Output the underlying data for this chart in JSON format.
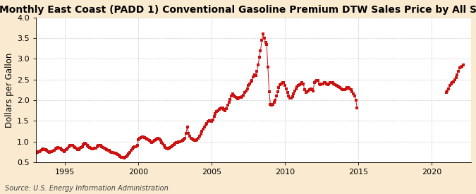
{
  "title": "Monthly East Coast (PADD 1) Conventional Gasoline Premium DTW Sales Price by All Sellers",
  "ylabel": "Dollars per Gallon",
  "source": "Source: U.S. Energy Information Administration",
  "xlim": [
    1993.0,
    2022.7
  ],
  "ylim": [
    0.5,
    4.0
  ],
  "xticks": [
    1995,
    2000,
    2005,
    2010,
    2015,
    2020
  ],
  "yticks": [
    0.5,
    1.0,
    1.5,
    2.0,
    2.5,
    3.0,
    3.5,
    4.0
  ],
  "outer_bg": "#faebd0",
  "plot_bg": "#ffffff",
  "marker_color": "#cc1111",
  "grid_color": "#aaaaaa",
  "title_fontsize": 10,
  "label_fontsize": 8.5,
  "tick_fontsize": 8,
  "segments": [
    {
      "x": [
        1993.0,
        1993.08,
        1993.17,
        1993.25,
        1993.33,
        1993.42,
        1993.5,
        1993.58,
        1993.67,
        1993.75,
        1993.83,
        1993.92,
        1994.0,
        1994.08,
        1994.17,
        1994.25,
        1994.33,
        1994.42,
        1994.5,
        1994.58,
        1994.67,
        1994.75,
        1994.83,
        1994.92,
        1995.0,
        1995.08,
        1995.17,
        1995.25,
        1995.33,
        1995.42,
        1995.5,
        1995.58,
        1995.67,
        1995.75,
        1995.83,
        1995.92,
        1996.0,
        1996.08,
        1996.17,
        1996.25,
        1996.33,
        1996.42,
        1996.5,
        1996.58,
        1996.67,
        1996.75,
        1996.83,
        1996.92,
        1997.0,
        1997.08,
        1997.17,
        1997.25,
        1997.33,
        1997.42,
        1997.5,
        1997.58,
        1997.67,
        1997.75,
        1997.83,
        1997.92,
        1998.0,
        1998.08,
        1998.17,
        1998.25,
        1998.33,
        1998.42,
        1998.5,
        1998.58,
        1998.67,
        1998.75,
        1998.83,
        1998.92,
        1999.0,
        1999.08,
        1999.17,
        1999.25,
        1999.33,
        1999.42,
        1999.5,
        1999.58,
        1999.67,
        1999.75,
        1999.83,
        1999.92,
        2000.0,
        2000.08,
        2000.17,
        2000.25,
        2000.33,
        2000.42,
        2000.5,
        2000.58,
        2000.67,
        2000.75,
        2000.83,
        2000.92,
        2001.0,
        2001.08,
        2001.17,
        2001.25,
        2001.33,
        2001.42,
        2001.5,
        2001.58,
        2001.67,
        2001.75,
        2001.83,
        2001.92,
        2002.0,
        2002.08,
        2002.17,
        2002.25,
        2002.33,
        2002.42,
        2002.5,
        2002.58,
        2002.67,
        2002.75,
        2002.83,
        2002.92,
        2003.0,
        2003.08,
        2003.17,
        2003.25,
        2003.33,
        2003.42,
        2003.5,
        2003.58,
        2003.67,
        2003.75,
        2003.83,
        2003.92,
        2004.0,
        2004.08,
        2004.17,
        2004.25,
        2004.33,
        2004.42,
        2004.5,
        2004.58,
        2004.67,
        2004.75,
        2004.83,
        2004.92,
        2005.0,
        2005.08,
        2005.17,
        2005.25,
        2005.33,
        2005.42,
        2005.5,
        2005.58,
        2005.67,
        2005.75,
        2005.83,
        2005.92,
        2006.0,
        2006.08,
        2006.17,
        2006.25,
        2006.33,
        2006.42,
        2006.5,
        2006.58,
        2006.67,
        2006.75,
        2006.83,
        2006.92,
        2007.0,
        2007.08,
        2007.17,
        2007.25,
        2007.33,
        2007.42,
        2007.5,
        2007.58,
        2007.67,
        2007.75,
        2007.83,
        2007.92,
        2008.0,
        2008.08,
        2008.17,
        2008.25,
        2008.33,
        2008.42,
        2008.5,
        2008.58,
        2008.67,
        2008.75,
        2008.83,
        2008.92,
        2009.0,
        2009.08,
        2009.17,
        2009.25,
        2009.33,
        2009.42,
        2009.5,
        2009.58,
        2009.67,
        2009.75,
        2009.83,
        2009.92,
        2010.0,
        2010.08,
        2010.17,
        2010.25,
        2010.33,
        2010.42,
        2010.5,
        2010.58,
        2010.67,
        2010.75,
        2010.83,
        2010.92,
        2011.0,
        2011.08,
        2011.17,
        2011.25,
        2011.33,
        2011.42,
        2011.5,
        2011.58,
        2011.67,
        2011.75,
        2011.83,
        2011.92,
        2012.0,
        2012.08,
        2012.17,
        2012.25,
        2012.33,
        2012.42,
        2012.5,
        2012.58,
        2012.67,
        2012.75,
        2012.83,
        2012.92,
        2013.0,
        2013.08,
        2013.17,
        2013.25,
        2013.33,
        2013.42,
        2013.5,
        2013.58,
        2013.67,
        2013.75,
        2013.83,
        2013.92,
        2014.0,
        2014.08,
        2014.17,
        2014.25,
        2014.33,
        2014.42,
        2014.5,
        2014.58,
        2014.67,
        2014.75,
        2014.83,
        2014.92
      ],
      "y": [
        0.72,
        0.73,
        0.75,
        0.76,
        0.78,
        0.8,
        0.82,
        0.81,
        0.8,
        0.78,
        0.76,
        0.74,
        0.75,
        0.76,
        0.77,
        0.79,
        0.82,
        0.84,
        0.85,
        0.84,
        0.83,
        0.81,
        0.78,
        0.76,
        0.78,
        0.8,
        0.83,
        0.87,
        0.9,
        0.91,
        0.9,
        0.88,
        0.85,
        0.83,
        0.81,
        0.8,
        0.83,
        0.85,
        0.88,
        0.92,
        0.95,
        0.94,
        0.91,
        0.88,
        0.85,
        0.84,
        0.82,
        0.82,
        0.83,
        0.84,
        0.87,
        0.9,
        0.91,
        0.9,
        0.88,
        0.86,
        0.84,
        0.82,
        0.8,
        0.79,
        0.78,
        0.76,
        0.74,
        0.73,
        0.72,
        0.71,
        0.7,
        0.68,
        0.66,
        0.64,
        0.62,
        0.61,
        0.6,
        0.61,
        0.63,
        0.66,
        0.7,
        0.74,
        0.78,
        0.82,
        0.85,
        0.87,
        0.88,
        0.9,
        1.05,
        1.08,
        1.1,
        1.11,
        1.11,
        1.1,
        1.08,
        1.06,
        1.04,
        1.02,
        1.0,
        0.98,
        1.0,
        1.02,
        1.04,
        1.06,
        1.08,
        1.06,
        1.02,
        0.98,
        0.94,
        0.9,
        0.86,
        0.84,
        0.82,
        0.83,
        0.85,
        0.87,
        0.9,
        0.92,
        0.95,
        0.97,
        0.98,
        0.99,
        1.0,
        1.01,
        1.03,
        1.05,
        1.08,
        1.2,
        1.35,
        1.2,
        1.12,
        1.08,
        1.06,
        1.04,
        1.02,
        1.02,
        1.04,
        1.08,
        1.12,
        1.18,
        1.25,
        1.3,
        1.35,
        1.4,
        1.44,
        1.48,
        1.5,
        1.5,
        1.48,
        1.52,
        1.6,
        1.68,
        1.72,
        1.75,
        1.78,
        1.8,
        1.82,
        1.82,
        1.78,
        1.75,
        1.8,
        1.88,
        1.95,
        2.02,
        2.1,
        2.15,
        2.12,
        2.08,
        2.06,
        2.04,
        2.05,
        2.07,
        2.06,
        2.08,
        2.12,
        2.18,
        2.22,
        2.28,
        2.35,
        2.4,
        2.44,
        2.48,
        2.56,
        2.62,
        2.6,
        2.7,
        2.85,
        3.05,
        3.2,
        3.45,
        3.6,
        3.5,
        3.4,
        3.35,
        2.8,
        2.2,
        1.9,
        1.88,
        1.9,
        1.95,
        2.0,
        2.1,
        2.2,
        2.3,
        2.38,
        2.4,
        2.42,
        2.42,
        2.35,
        2.28,
        2.18,
        2.1,
        2.05,
        2.05,
        2.08,
        2.15,
        2.22,
        2.28,
        2.32,
        2.35,
        2.38,
        2.4,
        2.42,
        2.4,
        2.25,
        2.18,
        2.2,
        2.22,
        2.25,
        2.28,
        2.25,
        2.22,
        2.42,
        2.45,
        2.48,
        2.48,
        2.4,
        2.38,
        2.4,
        2.4,
        2.42,
        2.42,
        2.4,
        2.38,
        2.4,
        2.42,
        2.42,
        2.42,
        2.4,
        2.38,
        2.36,
        2.34,
        2.32,
        2.3,
        2.28,
        2.26,
        2.25,
        2.25,
        2.28,
        2.3,
        2.3,
        2.28,
        2.25,
        2.2,
        2.15,
        2.1,
        2.0,
        1.82
      ]
    },
    {
      "x": [
        2021.0,
        2021.08,
        2021.17,
        2021.25,
        2021.33,
        2021.42,
        2021.5,
        2021.58,
        2021.67,
        2021.75,
        2021.83,
        2021.92,
        2022.0,
        2022.08,
        2022.17
      ],
      "y": [
        2.18,
        2.22,
        2.28,
        2.35,
        2.4,
        2.42,
        2.45,
        2.5,
        2.55,
        2.62,
        2.7,
        2.78,
        2.8,
        2.82,
        2.85
      ]
    }
  ]
}
